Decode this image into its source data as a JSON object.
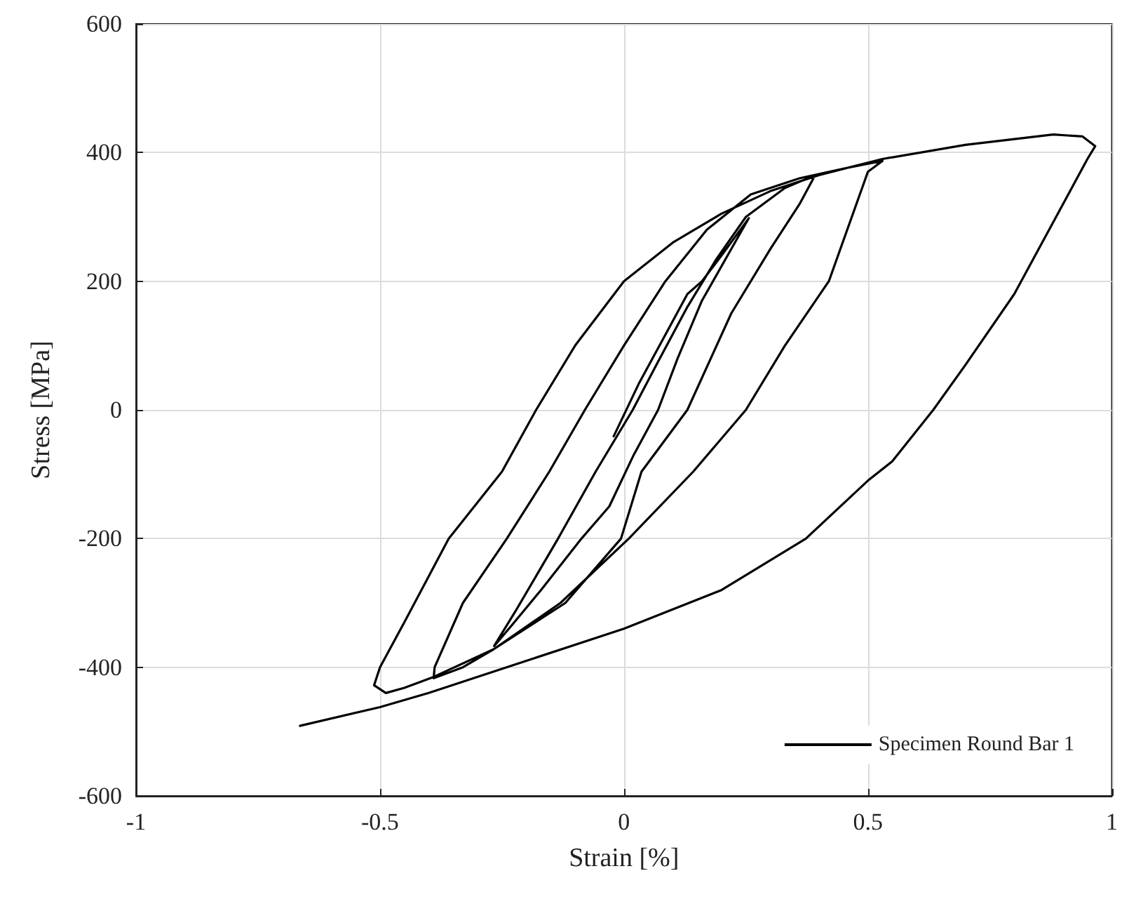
{
  "chart_data": {
    "type": "line",
    "xlabel": "Strain [%]",
    "ylabel": "Stress [MPa]",
    "xlim": [
      -1,
      1
    ],
    "xticks": [
      -1,
      -0.5,
      0,
      0.5,
      1
    ],
    "ylim": [
      -600,
      600
    ],
    "yticks": [
      -600,
      -400,
      -200,
      0,
      200,
      400,
      600
    ],
    "grid": true,
    "legend": "bottom right",
    "marker": "none",
    "line_style": "solid",
    "series": [
      {
        "name": "Specimen Round Bar 1",
        "color": "#000000",
        "x": [
          -0.021,
          0.03,
          0.08,
          0.13,
          0.16,
          0.2,
          0.256,
          0.22,
          0.16,
          0.11,
          0.07,
          0.02,
          -0.03,
          -0.087,
          -0.17,
          -0.23,
          -0.266,
          -0.22,
          -0.135,
          -0.058,
          0.018,
          0.07,
          0.13,
          0.19,
          0.25,
          0.33,
          0.392,
          0.36,
          0.3,
          0.22,
          0.13,
          0.036,
          -0.006,
          -0.12,
          -0.267,
          -0.33,
          -0.39,
          -0.388,
          -0.33,
          -0.24,
          -0.153,
          -0.08,
          0.0,
          0.085,
          0.17,
          0.26,
          0.36,
          0.45,
          0.53,
          0.5,
          0.42,
          0.33,
          0.25,
          0.142,
          0.01,
          -0.13,
          -0.267,
          -0.39,
          -0.45,
          -0.488,
          -0.512,
          -0.5,
          -0.45,
          -0.359,
          -0.25,
          -0.18,
          -0.1,
          0.0,
          0.1,
          0.2,
          0.3,
          0.4,
          0.53,
          0.7,
          0.88,
          0.94,
          0.966,
          0.95,
          0.9,
          0.8,
          0.7,
          0.634,
          0.55,
          0.5,
          0.373,
          0.2,
          0.0,
          -0.2,
          -0.4,
          -0.5,
          -0.664
        ],
        "values": [
          -41,
          40,
          110,
          180,
          200,
          240,
          298,
          250,
          170,
          80,
          0,
          -70,
          -150,
          -200,
          -280,
          -335,
          -367,
          -310,
          -200,
          -96,
          0,
          75,
          160,
          235,
          300,
          345,
          365,
          320,
          250,
          150,
          0,
          -96,
          -200,
          -300,
          -372,
          -400,
          -417,
          -400,
          -300,
          -200,
          -96,
          0,
          100,
          200,
          280,
          335,
          360,
          375,
          387,
          370,
          200,
          100,
          0,
          -96,
          -200,
          -300,
          -372,
          -415,
          -432,
          -440,
          -428,
          -400,
          -330,
          -200,
          -96,
          0,
          100,
          200,
          260,
          305,
          340,
          365,
          390,
          412,
          428,
          425,
          410,
          390,
          320,
          180,
          70,
          0,
          -80,
          -110,
          -200,
          -280,
          -340,
          -390,
          -440,
          -462,
          -491
        ]
      }
    ]
  }
}
